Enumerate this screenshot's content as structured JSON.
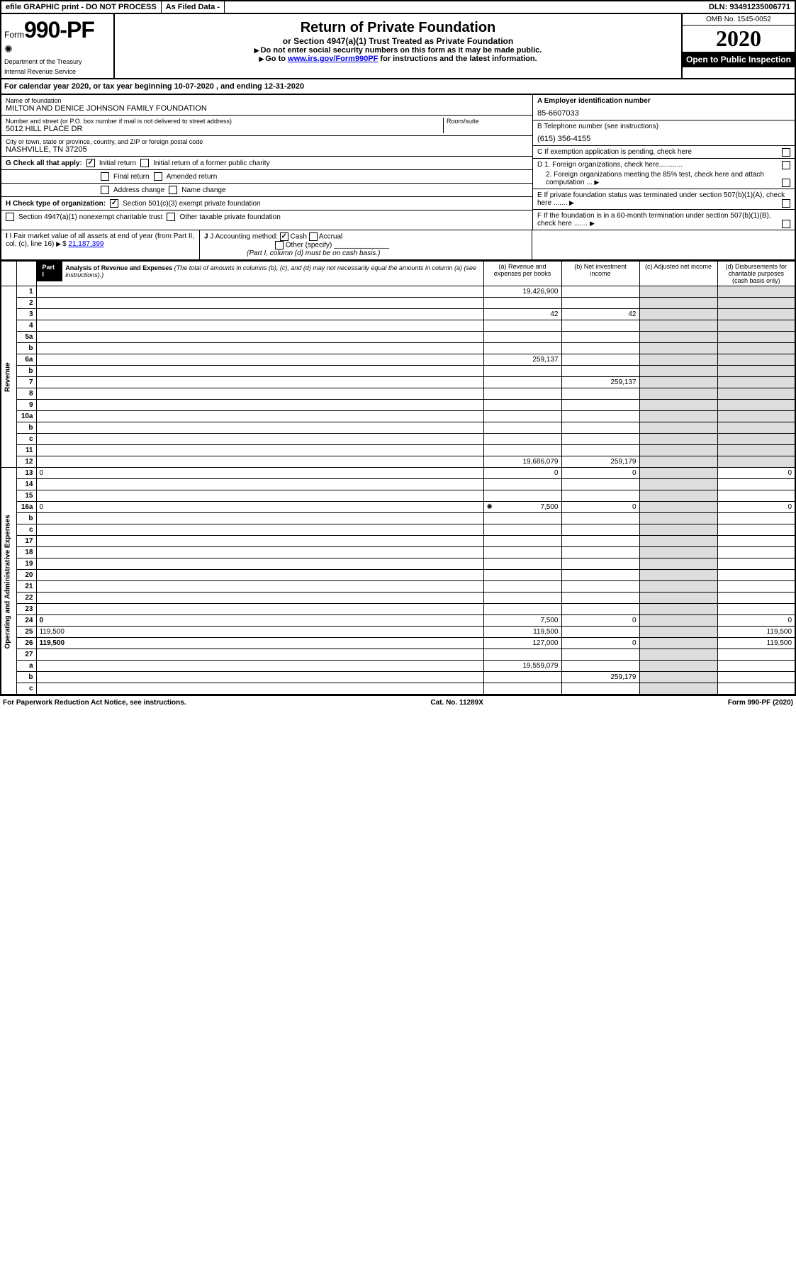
{
  "topbar": {
    "efile": "efile GRAPHIC print - DO NOT PROCESS",
    "asfiled": "As Filed Data -",
    "dln": "DLN: 93491235006771"
  },
  "header": {
    "form_label": "Form",
    "form_number": "990-PF",
    "dept1": "Department of the Treasury",
    "dept2": "Internal Revenue Service",
    "title": "Return of Private Foundation",
    "subtitle": "or Section 4947(a)(1) Trust Treated as Private Foundation",
    "instr1": "Do not enter social security numbers on this form as it may be made public.",
    "instr2_pre": "Go to ",
    "instr2_link": "www.irs.gov/Form990PF",
    "instr2_post": " for instructions and the latest information.",
    "omb": "OMB No. 1545-0052",
    "year": "2020",
    "open": "Open to Public Inspection"
  },
  "calyear": {
    "prefix": "For calendar year 2020, or tax year beginning ",
    "begin": "10-07-2020",
    "mid": " , and ending ",
    "end": "12-31-2020"
  },
  "filer": {
    "name_label": "Name of foundation",
    "name": "MILTON AND DENICE JOHNSON FAMILY FOUNDATION",
    "addr_label": "Number and street (or P.O. box number if mail is not delivered to street address)",
    "addr": "5012 HILL PLACE DR",
    "room_label": "Room/suite",
    "room": "",
    "city_label": "City or town, state or province, country, and ZIP or foreign postal code",
    "city": "NASHVILLE, TN  37205",
    "a_label": "A Employer identification number",
    "a_val": "85-6607033",
    "b_label": "B Telephone number (see instructions)",
    "b_val": "(615) 356-4155",
    "c_label": "C If exemption application is pending, check here",
    "d1": "D 1. Foreign organizations, check here............",
    "d2": "2. Foreign organizations meeting the 85% test, check here and attach computation ...",
    "e": "E  If private foundation status was terminated under section 507(b)(1)(A), check here .......",
    "f": "F  If the foundation is in a 60-month termination under section 507(b)(1)(B), check here .......",
    "g_label": "G Check all that apply:",
    "g_opts": [
      "Initial return",
      "Initial return of a former public charity",
      "Final return",
      "Amended return",
      "Address change",
      "Name change"
    ],
    "h_label": "H Check type of organization:",
    "h1": "Section 501(c)(3) exempt private foundation",
    "h2": "Section 4947(a)(1) nonexempt charitable trust",
    "h3": "Other taxable private foundation",
    "i_label": "I Fair market value of all assets at end of year (from Part II, col. (c), line 16)",
    "i_val": "21,187,399",
    "j_label": "J Accounting method:",
    "j_cash": "Cash",
    "j_accrual": "Accrual",
    "j_other": "Other (specify)",
    "j_note": "(Part I, column (d) must be on cash basis.)"
  },
  "part1": {
    "label": "Part I",
    "title": "Analysis of Revenue and Expenses",
    "title_note": "(The total of amounts in columns (b), (c), and (d) may not necessarily equal the amounts in column (a) (see instructions).)",
    "col_a": "(a)  Revenue and expenses per books",
    "col_b": "(b)  Net investment income",
    "col_c": "(c)  Adjusted net income",
    "col_d": "(d)  Disbursements for charitable purposes (cash basis only)"
  },
  "sidelabels": {
    "revenue": "Revenue",
    "expenses": "Operating and Administrative Expenses"
  },
  "rows": [
    {
      "n": "1",
      "d": "",
      "a": "19,426,900",
      "b": "",
      "c": ""
    },
    {
      "n": "2",
      "d": "",
      "a": "",
      "b": "",
      "c": ""
    },
    {
      "n": "3",
      "d": "",
      "a": "42",
      "b": "42",
      "c": ""
    },
    {
      "n": "4",
      "d": "",
      "a": "",
      "b": "",
      "c": ""
    },
    {
      "n": "5a",
      "d": "",
      "a": "",
      "b": "",
      "c": ""
    },
    {
      "n": "b",
      "d": "",
      "a": "",
      "b": "",
      "c": ""
    },
    {
      "n": "6a",
      "d": "",
      "a": "259,137",
      "b": "",
      "c": ""
    },
    {
      "n": "b",
      "d": "",
      "a": "",
      "b": "",
      "c": ""
    },
    {
      "n": "7",
      "d": "",
      "a": "",
      "b": "259,137",
      "c": ""
    },
    {
      "n": "8",
      "d": "",
      "a": "",
      "b": "",
      "c": ""
    },
    {
      "n": "9",
      "d": "",
      "a": "",
      "b": "",
      "c": ""
    },
    {
      "n": "10a",
      "d": "",
      "a": "",
      "b": "",
      "c": ""
    },
    {
      "n": "b",
      "d": "",
      "a": "",
      "b": "",
      "c": ""
    },
    {
      "n": "c",
      "d": "",
      "a": "",
      "b": "",
      "c": ""
    },
    {
      "n": "11",
      "d": "",
      "a": "",
      "b": "",
      "c": ""
    },
    {
      "n": "12",
      "d": "",
      "a": "19,686,079",
      "b": "259,179",
      "c": "",
      "bold": true
    },
    {
      "n": "13",
      "d": "0",
      "a": "0",
      "b": "0",
      "c": ""
    },
    {
      "n": "14",
      "d": "",
      "a": "",
      "b": "",
      "c": ""
    },
    {
      "n": "15",
      "d": "",
      "a": "",
      "b": "",
      "c": ""
    },
    {
      "n": "16a",
      "d": "0",
      "a": "7,500",
      "b": "0",
      "c": "",
      "icon": true
    },
    {
      "n": "b",
      "d": "",
      "a": "",
      "b": "",
      "c": ""
    },
    {
      "n": "c",
      "d": "",
      "a": "",
      "b": "",
      "c": ""
    },
    {
      "n": "17",
      "d": "",
      "a": "",
      "b": "",
      "c": ""
    },
    {
      "n": "18",
      "d": "",
      "a": "",
      "b": "",
      "c": ""
    },
    {
      "n": "19",
      "d": "",
      "a": "",
      "b": "",
      "c": ""
    },
    {
      "n": "20",
      "d": "",
      "a": "",
      "b": "",
      "c": ""
    },
    {
      "n": "21",
      "d": "",
      "a": "",
      "b": "",
      "c": ""
    },
    {
      "n": "22",
      "d": "",
      "a": "",
      "b": "",
      "c": ""
    },
    {
      "n": "23",
      "d": "",
      "a": "",
      "b": "",
      "c": ""
    },
    {
      "n": "24",
      "d": "0",
      "a": "7,500",
      "b": "0",
      "c": "",
      "bold": true
    },
    {
      "n": "25",
      "d": "119,500",
      "a": "119,500",
      "b": "",
      "c": ""
    },
    {
      "n": "26",
      "d": "119,500",
      "a": "127,000",
      "b": "0",
      "c": "",
      "bold": true
    },
    {
      "n": "27",
      "d": "",
      "a": "",
      "b": "",
      "c": ""
    },
    {
      "n": "a",
      "d": "",
      "a": "19,559,079",
      "b": "",
      "c": "",
      "bold": true
    },
    {
      "n": "b",
      "d": "",
      "a": "",
      "b": "259,179",
      "c": "",
      "bold": true
    },
    {
      "n": "c",
      "d": "",
      "a": "",
      "b": "",
      "c": "",
      "bold": true
    }
  ],
  "footer": {
    "left": "For Paperwork Reduction Act Notice, see instructions.",
    "mid": "Cat. No. 11289X",
    "right": "Form 990-PF (2020)"
  },
  "colors": {
    "black": "#000000",
    "white": "#ffffff",
    "shaded": "#dddddd",
    "link": "#0000ee"
  }
}
